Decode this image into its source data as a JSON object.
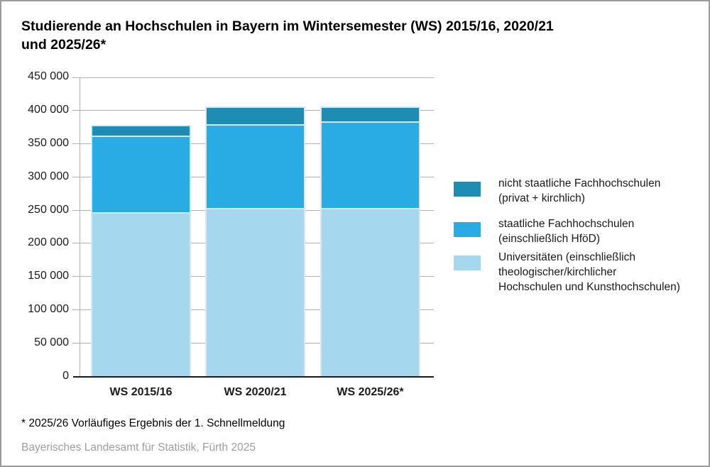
{
  "header": {
    "title_lines": [
      "Studierende an Hochschulen in Bayern im Wintersemester (WS) 2015/16, 2020/21",
      "und 2025/26*"
    ]
  },
  "chart_data": {
    "type": "bar",
    "stacked": true,
    "title": "Studierende an Hochschulen in Bayern im Wintersemester (WS) 2015/16, 2020/21 und 2025/26*",
    "categories": [
      "WS 2015/16",
      "WS 2020/21",
      "WS 2025/26*"
    ],
    "series": [
      {
        "name": "Universitäten (einschließlich theologischer/kirchlicher Hochschulen und Kunsthochschulen)",
        "color": "#a5d8ef",
        "values": [
          246000,
          253000,
          253000
        ]
      },
      {
        "name": "staatliche Fachhochschulen (einschließlich HföD)",
        "color": "#29ace3",
        "values": [
          116000,
          126000,
          130000
        ]
      },
      {
        "name": "nicht staatliche Fachhochschulen (privat + kirchlich)",
        "color": "#1f8cb4",
        "values": [
          15000,
          26000,
          22000
        ]
      }
    ],
    "totals": [
      377000,
      405000,
      405000
    ],
    "xlabel": "",
    "ylabel": "",
    "ylim": [
      0,
      450000
    ],
    "ytick_step": 50000,
    "ytick_labels": [
      "0",
      "50 000",
      "100 000",
      "150 000",
      "200 000",
      "250 000",
      "300 000",
      "350 000",
      "400 000",
      "450 000"
    ],
    "grid": true,
    "legend_position": "right"
  },
  "legend": {
    "items": [
      {
        "color": "#1f8cb4",
        "lines": [
          "nicht staatliche Fachhochschulen",
          "(privat + kirchlich)"
        ]
      },
      {
        "color": "#29ace3",
        "lines": [
          "staatliche Fachhochschulen",
          "(einschließlich HföD)"
        ]
      },
      {
        "color": "#a5d8ef",
        "lines": [
          "Universitäten (einschließlich",
          "theologischer/kirchlicher",
          "Hochschulen und Kunsthochschulen)"
        ]
      }
    ]
  },
  "footer": {
    "footnote": "* 2025/26 Vorläufiges Ergebnis der 1. Schnellmeldung",
    "source": "Bayerisches Landesamt für Statistik, Fürth 2025"
  },
  "colors": {
    "dark_blue": "#1f8cb4",
    "mid_blue": "#29ace3",
    "light_blue": "#a5d8ef",
    "grid": "#b2b2b2",
    "axis": "#1a1a1a",
    "bar_border": "#d2e9f6",
    "source_text": "#9e9e9e",
    "frame_border": "#9b9b9b"
  }
}
